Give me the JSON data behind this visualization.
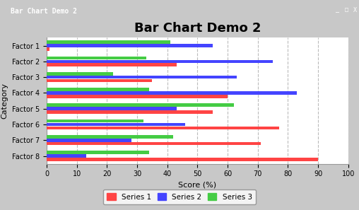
{
  "title": "Bar Chart Demo 2",
  "window_title": "Bar Chart Demo 2",
  "xlabel": "Score (%)",
  "ylabel": "Category",
  "categories": [
    "Factor 1",
    "Factor 2",
    "Factor 3",
    "Factor 4",
    "Factor 5",
    "Factor 6",
    "Factor 7",
    "Factor 8"
  ],
  "series": {
    "Series 1": [
      1,
      43,
      35,
      60,
      55,
      77,
      71,
      90
    ],
    "Series 2": [
      55,
      75,
      63,
      83,
      43,
      46,
      28,
      13
    ],
    "Series 3": [
      41,
      33,
      22,
      34,
      62,
      32,
      42,
      34
    ]
  },
  "colors": {
    "Series 1": "#FF4444",
    "Series 2": "#4444FF",
    "Series 3": "#44CC44"
  },
  "xlim": [
    0,
    100
  ],
  "xticks": [
    0,
    10,
    20,
    30,
    40,
    50,
    60,
    70,
    80,
    90,
    100
  ],
  "background_color": "#C8C8C8",
  "plot_bg_color": "#FFFFFF",
  "titlebar_color": "#3060C0",
  "title_fontsize": 13,
  "bar_height": 0.22,
  "grid_color": "#BBBBBB",
  "tick_fontsize": 7,
  "axis_label_fontsize": 8
}
